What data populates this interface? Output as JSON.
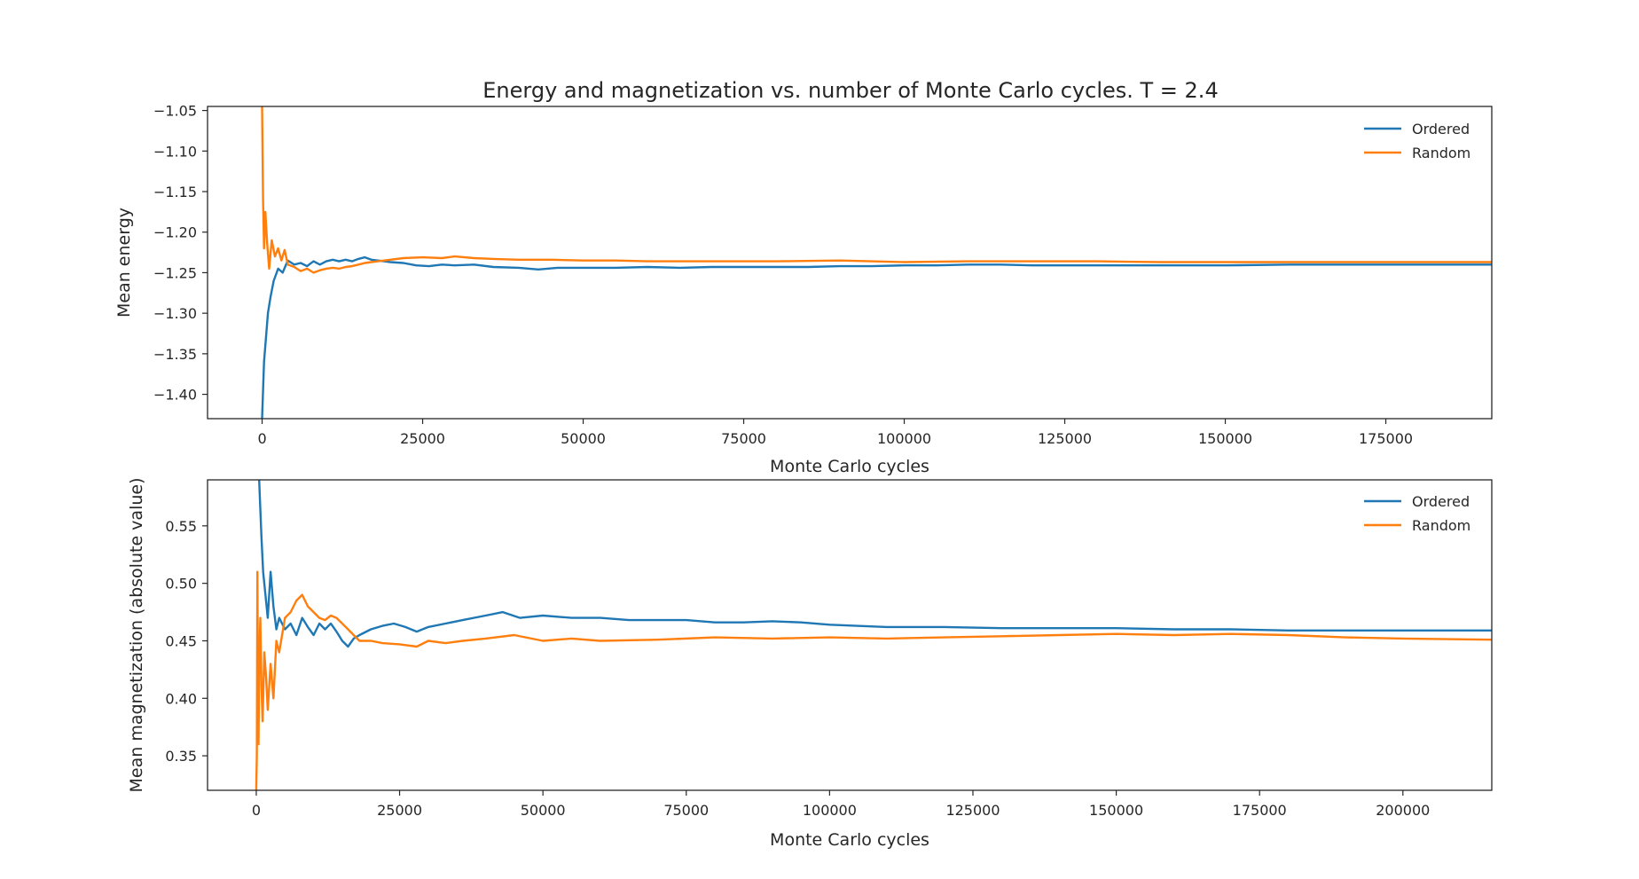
{
  "title": "Energy and magnetization vs. number of Monte Carlo cycles. T = 2.4",
  "colors": {
    "ordered": "#1f77b4",
    "random": "#ff7f0e",
    "axis": "#262626"
  },
  "chart_data": [
    {
      "type": "line",
      "title": "Energy and magnetization vs. number of Monte Carlo cycles. T = 2.4",
      "xlabel": "Monte Carlo cycles",
      "ylabel": "Mean energy",
      "xlim": [
        -8500,
        191500
      ],
      "ylim": [
        -1.43,
        -1.045
      ],
      "xticks": [
        0,
        25000,
        50000,
        75000,
        100000,
        125000,
        150000,
        175000
      ],
      "yticks": [
        -1.05,
        -1.1,
        -1.15,
        -1.2,
        -1.25,
        -1.3,
        -1.35,
        -1.4
      ],
      "ytick_labels": [
        "−1.05",
        "−1.10",
        "−1.15",
        "−1.20",
        "−1.25",
        "−1.30",
        "−1.35",
        "−1.40"
      ],
      "grid": false,
      "legend": "top-right",
      "series": [
        {
          "name": "Ordered",
          "color": "#1f77b4",
          "x": [
            0,
            300,
            600,
            900,
            1300,
            1800,
            2500,
            3200,
            4000,
            5000,
            6000,
            7000,
            8000,
            9000,
            10000,
            11000,
            12000,
            13000,
            14000,
            15000,
            16000,
            17000,
            18000,
            19000,
            20000,
            22000,
            24000,
            26000,
            28000,
            30000,
            33000,
            36000,
            40000,
            43000,
            46000,
            50000,
            55000,
            60000,
            65000,
            70000,
            75000,
            80000,
            85000,
            90000,
            95000,
            100000,
            105000,
            110000,
            115000,
            120000,
            125000,
            130000,
            140000,
            150000,
            160000,
            170000,
            180000,
            191500
          ],
          "y": [
            -1.43,
            -1.36,
            -1.33,
            -1.3,
            -1.28,
            -1.26,
            -1.245,
            -1.25,
            -1.235,
            -1.24,
            -1.238,
            -1.242,
            -1.236,
            -1.24,
            -1.236,
            -1.234,
            -1.236,
            -1.234,
            -1.236,
            -1.233,
            -1.231,
            -1.234,
            -1.235,
            -1.236,
            -1.237,
            -1.238,
            -1.241,
            -1.242,
            -1.24,
            -1.241,
            -1.24,
            -1.243,
            -1.244,
            -1.246,
            -1.244,
            -1.244,
            -1.244,
            -1.243,
            -1.244,
            -1.243,
            -1.243,
            -1.243,
            -1.243,
            -1.242,
            -1.242,
            -1.241,
            -1.241,
            -1.24,
            -1.24,
            -1.241,
            -1.241,
            -1.241,
            -1.241,
            -1.241,
            -1.24,
            -1.24,
            -1.24,
            -1.24
          ]
        },
        {
          "name": "Random",
          "color": "#ff7f0e",
          "x": [
            0,
            150,
            300,
            500,
            800,
            1100,
            1500,
            2000,
            2500,
            3000,
            3500,
            4000,
            5000,
            6000,
            7000,
            8000,
            9000,
            10000,
            11000,
            12000,
            13000,
            14000,
            15000,
            16000,
            17000,
            18000,
            20000,
            22000,
            25000,
            28000,
            30000,
            33000,
            36000,
            40000,
            45000,
            50000,
            55000,
            60000,
            70000,
            80000,
            90000,
            100000,
            110000,
            120000,
            130000,
            140000,
            150000,
            160000,
            170000,
            180000,
            191500
          ],
          "y": [
            -1.045,
            -1.16,
            -1.22,
            -1.175,
            -1.215,
            -1.245,
            -1.21,
            -1.23,
            -1.22,
            -1.235,
            -1.222,
            -1.24,
            -1.243,
            -1.248,
            -1.245,
            -1.25,
            -1.247,
            -1.245,
            -1.244,
            -1.245,
            -1.243,
            -1.242,
            -1.24,
            -1.238,
            -1.237,
            -1.236,
            -1.234,
            -1.232,
            -1.231,
            -1.232,
            -1.23,
            -1.232,
            -1.233,
            -1.234,
            -1.234,
            -1.235,
            -1.235,
            -1.236,
            -1.236,
            -1.236,
            -1.235,
            -1.237,
            -1.236,
            -1.236,
            -1.236,
            -1.237,
            -1.237,
            -1.237,
            -1.237,
            -1.237,
            -1.237
          ]
        }
      ]
    },
    {
      "type": "line",
      "xlabel": "Monte Carlo cycles",
      "ylabel": "Mean magnetization (absolute value)",
      "xlim": [
        -8500,
        215500
      ],
      "ylim": [
        0.32,
        0.59
      ],
      "xticks": [
        0,
        25000,
        50000,
        75000,
        100000,
        125000,
        150000,
        175000,
        200000
      ],
      "yticks": [
        0.35,
        0.4,
        0.45,
        0.5,
        0.55
      ],
      "ytick_labels": [
        "0.35",
        "0.40",
        "0.45",
        "0.50",
        "0.55"
      ],
      "grid": false,
      "legend": "top-right",
      "series": [
        {
          "name": "Ordered",
          "color": "#1f77b4",
          "x": [
            500,
            700,
            900,
            1200,
            1600,
            2000,
            2500,
            3000,
            3500,
            4000,
            5000,
            6000,
            7000,
            8000,
            9000,
            10000,
            11000,
            12000,
            13000,
            14000,
            15000,
            16000,
            17000,
            18000,
            20000,
            22000,
            24000,
            26000,
            28000,
            30000,
            33000,
            36000,
            40000,
            43000,
            46000,
            50000,
            55000,
            60000,
            65000,
            70000,
            75000,
            80000,
            85000,
            90000,
            95000,
            100000,
            110000,
            120000,
            130000,
            140000,
            150000,
            160000,
            170000,
            180000,
            190000,
            200000,
            215500
          ],
          "y": [
            0.59,
            0.565,
            0.54,
            0.51,
            0.49,
            0.47,
            0.51,
            0.48,
            0.46,
            0.47,
            0.46,
            0.465,
            0.455,
            0.47,
            0.462,
            0.455,
            0.465,
            0.46,
            0.465,
            0.458,
            0.45,
            0.445,
            0.452,
            0.455,
            0.46,
            0.463,
            0.465,
            0.462,
            0.458,
            0.462,
            0.465,
            0.468,
            0.472,
            0.475,
            0.47,
            0.472,
            0.47,
            0.47,
            0.468,
            0.468,
            0.468,
            0.466,
            0.466,
            0.467,
            0.466,
            0.464,
            0.462,
            0.462,
            0.461,
            0.461,
            0.461,
            0.46,
            0.46,
            0.459,
            0.459,
            0.459,
            0.459
          ]
        },
        {
          "name": "Random",
          "color": "#ff7f0e",
          "x": [
            0,
            100,
            200,
            300,
            400,
            500,
            700,
            900,
            1100,
            1400,
            1700,
            2000,
            2500,
            3000,
            3500,
            4000,
            5000,
            6000,
            7000,
            8000,
            9000,
            10000,
            11000,
            12000,
            13000,
            14000,
            15000,
            16000,
            17000,
            18000,
            20000,
            22000,
            25000,
            28000,
            30000,
            33000,
            36000,
            40000,
            45000,
            50000,
            55000,
            60000,
            70000,
            80000,
            90000,
            100000,
            110000,
            120000,
            130000,
            140000,
            150000,
            160000,
            170000,
            180000,
            190000,
            200000,
            215500
          ],
          "y": [
            0.32,
            0.35,
            0.51,
            0.4,
            0.36,
            0.43,
            0.47,
            0.41,
            0.38,
            0.44,
            0.42,
            0.39,
            0.43,
            0.4,
            0.45,
            0.44,
            0.47,
            0.475,
            0.485,
            0.49,
            0.48,
            0.475,
            0.47,
            0.468,
            0.472,
            0.47,
            0.465,
            0.46,
            0.455,
            0.45,
            0.45,
            0.448,
            0.447,
            0.445,
            0.45,
            0.448,
            0.45,
            0.452,
            0.455,
            0.45,
            0.452,
            0.45,
            0.451,
            0.453,
            0.452,
            0.453,
            0.452,
            0.453,
            0.454,
            0.455,
            0.456,
            0.455,
            0.456,
            0.455,
            0.453,
            0.452,
            0.451
          ]
        }
      ]
    }
  ]
}
